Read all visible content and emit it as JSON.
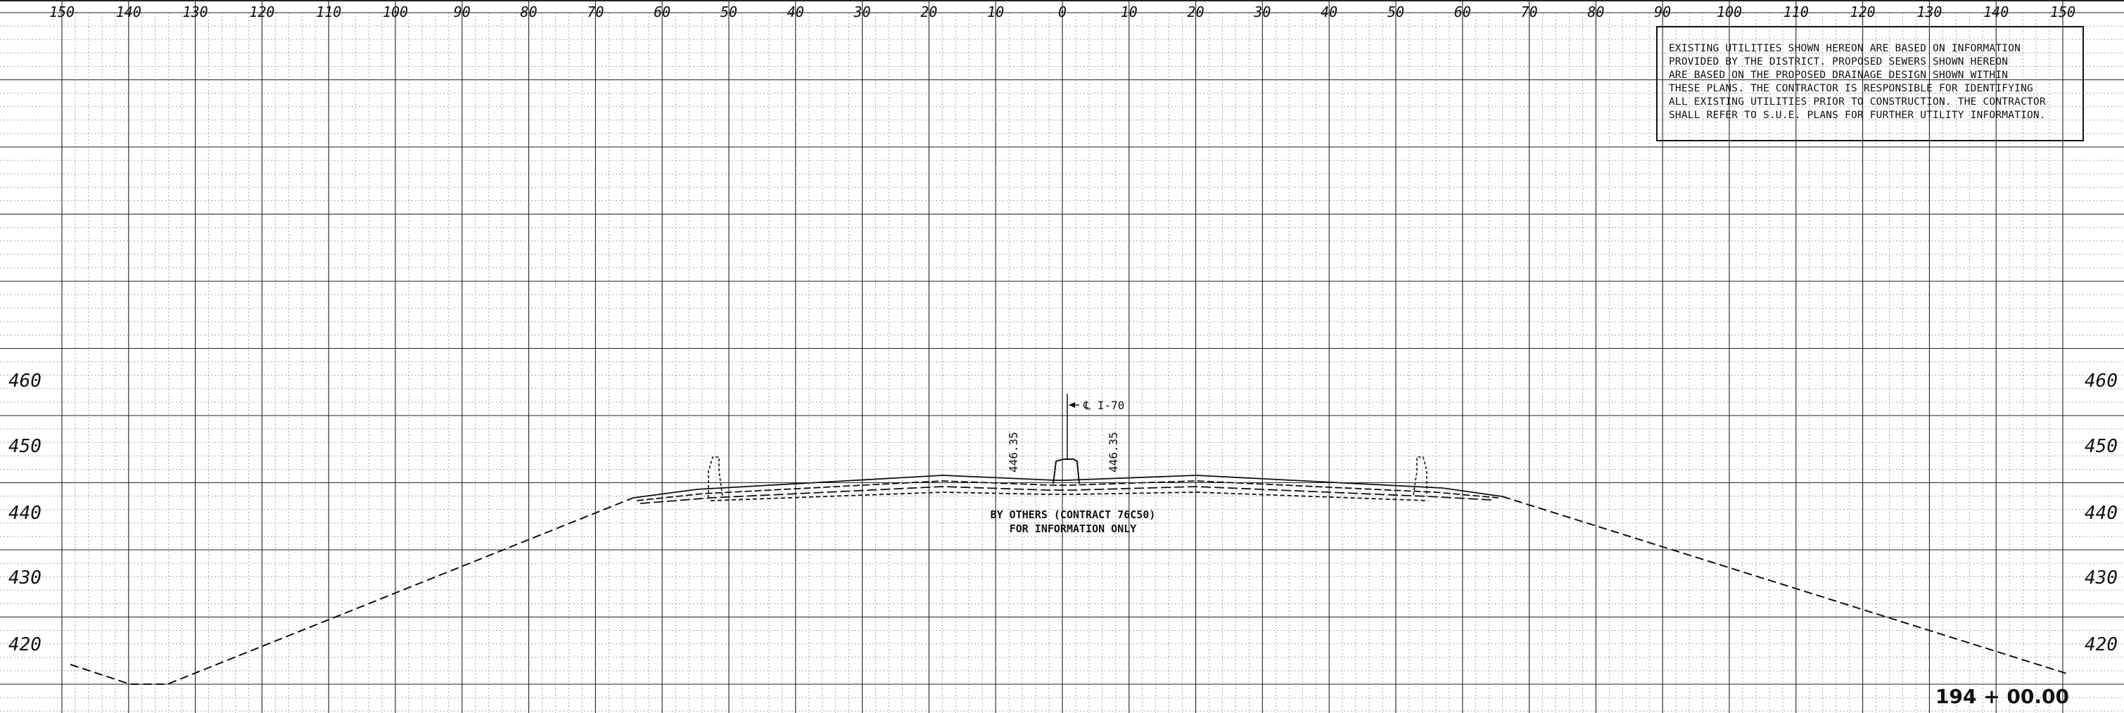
{
  "station": "194 + 00.00",
  "offset_ticks": [
    "150",
    "140",
    "130",
    "120",
    "110",
    "100",
    "90",
    "80",
    "70",
    "60",
    "50",
    "40",
    "30",
    "20",
    "10",
    "0",
    "10",
    "20",
    "30",
    "40",
    "50",
    "60",
    "70",
    "80",
    "90",
    "100",
    "110",
    "120",
    "130",
    "140",
    "150"
  ],
  "elevation_ticks": [
    "460",
    "450",
    "440",
    "430",
    "420"
  ],
  "note": {
    "lines": [
      "EXISTING UTILITIES SHOWN HEREON ARE BASED ON INFORMATION",
      "PROVIDED BY THE DISTRICT.  PROPOSED SEWERS SHOWN HEREON",
      "ARE BASED ON THE PROPOSED DRAINAGE DESIGN SHOWN WITHIN",
      "THESE PLANS.  THE CONTRACTOR IS RESPONSIBLE FOR IDENTIFYING",
      "ALL EXISTING UTILITIES PRIOR TO CONSTRUCTION.  THE CONTRACTOR",
      "SHALL REFER TO S.U.E. PLANS FOR FURTHER UTILITY INFORMATION."
    ]
  },
  "centerline_label": "℄ I-70",
  "elevation_labels": [
    "446.35",
    "446.35"
  ],
  "by_others": [
    "BY OTHERS (CONTRACT 76C50)",
    "FOR INFORMATION ONLY"
  ],
  "colors": {
    "grid_major": "#222222",
    "grid_minor": "#9a9a9a",
    "line": "#111111"
  }
}
